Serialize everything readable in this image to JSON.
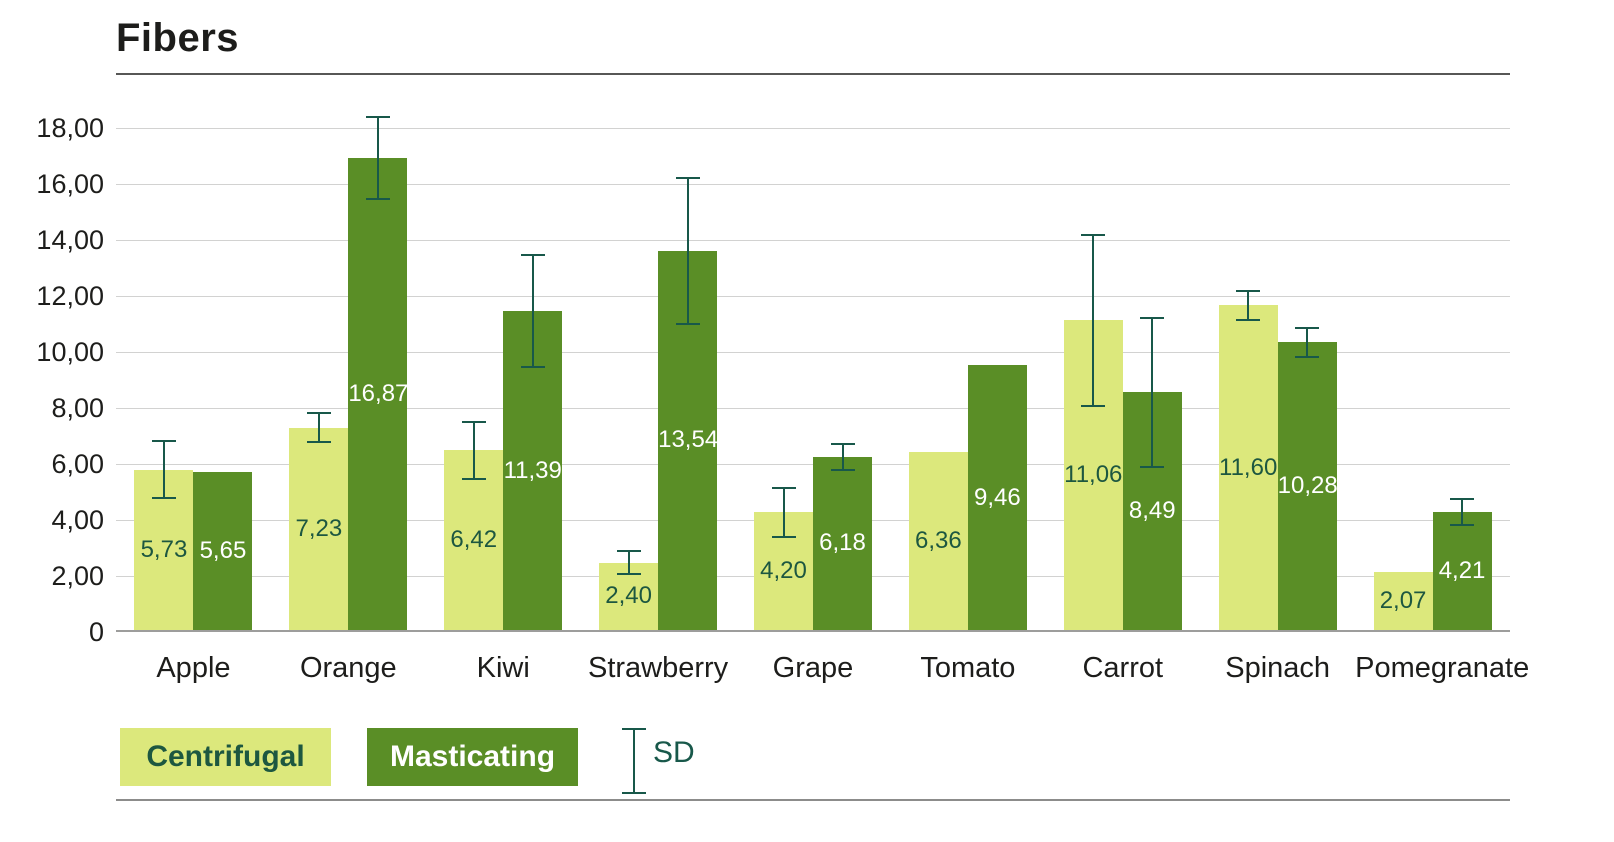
{
  "legend": {
    "centrifugal": "Centrifugal",
    "masticating": "Masticating",
    "sd": "SD"
  },
  "colors": {
    "centrifugal": "#dce87c",
    "masticating": "#5a8e26",
    "error": "#18584a",
    "label_on_light": "#1d5740",
    "label_on_dark": "#ffffff"
  },
  "chart_data": {
    "type": "bar",
    "title": "Fibers",
    "xlabel": "",
    "ylabel": "",
    "ylim": [
      0,
      18
    ],
    "grid": true,
    "legend_position": "bottom",
    "categories": [
      "Apple",
      "Orange",
      "Kiwi",
      "Strawberry",
      "Grape",
      "Tomato",
      "Carrot",
      "Spinach",
      "Pomegranate"
    ],
    "ytick_values": [
      18,
      16,
      14,
      12,
      10,
      8,
      6,
      4,
      2,
      0
    ],
    "ytick_labels": [
      "18,00",
      "16,00",
      "14,00",
      "12,00",
      "10,00",
      "8,00",
      "6,00",
      "4,00",
      "2,00",
      "0"
    ],
    "series": [
      {
        "name": "Centrifugal",
        "values": [
          5.73,
          7.23,
          6.42,
          2.4,
          4.2,
          6.36,
          11.06,
          11.6,
          2.07
        ],
        "labels": [
          "5,73",
          "7,23",
          "6,42",
          "2,40",
          "4,20",
          "6,36",
          "11,06",
          "11,60",
          "2,07"
        ],
        "sd": [
          1.05,
          0.55,
          1.05,
          0.45,
          0.9,
          null,
          3.1,
          0.55,
          null
        ]
      },
      {
        "name": "Masticating",
        "values": [
          5.65,
          16.87,
          11.39,
          13.54,
          6.18,
          9.46,
          8.49,
          10.28,
          4.21
        ],
        "labels": [
          "5,65",
          "16,87",
          "11,39",
          "13,54",
          "6,18",
          "9,46",
          "8,49",
          "10,28",
          "4,21"
        ],
        "sd": [
          null,
          1.5,
          2.05,
          2.65,
          0.5,
          null,
          2.7,
          0.55,
          0.5
        ]
      }
    ]
  }
}
